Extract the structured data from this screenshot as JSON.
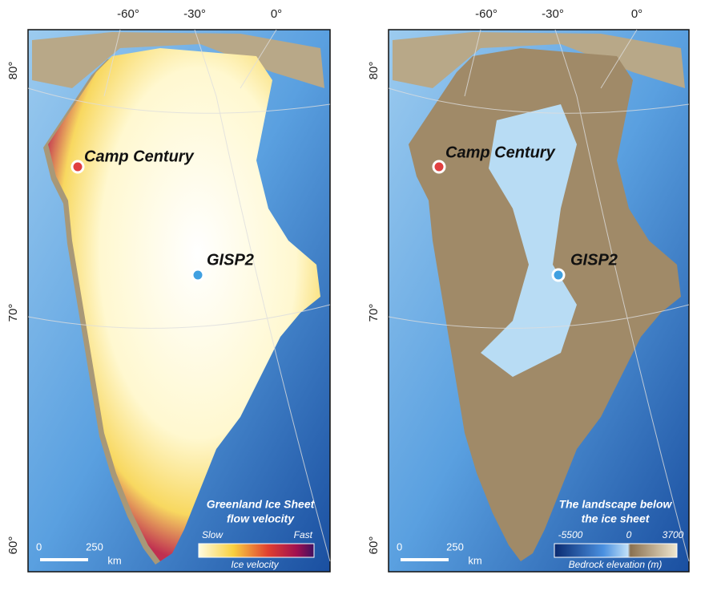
{
  "panels": [
    {
      "lon_labels": [
        "-60°",
        "-30°",
        "0°"
      ],
      "lat_labels": [
        "80°",
        "70°",
        "60°"
      ],
      "sites": [
        "Camp Century",
        "GISP2"
      ],
      "legend": {
        "title": [
          "Greenland Ice Sheet",
          "flow velocity"
        ],
        "scale_labels": [
          "Slow",
          "Fast"
        ],
        "caption": "Ice velocity"
      },
      "scale_bar": {
        "labels": [
          "0",
          "250"
        ],
        "unit": "km"
      }
    },
    {
      "lon_labels": [
        "-60°",
        "-30°",
        "0°"
      ],
      "lat_labels": [
        "80°",
        "70°",
        "60°"
      ],
      "sites": [
        "Camp Century",
        "GISP2"
      ],
      "legend": {
        "title": [
          "The landscape below",
          "the ice sheet"
        ],
        "scale_labels": [
          "-5500",
          "0",
          "3700"
        ],
        "caption": "Bedrock elevation (m)"
      },
      "scale_bar": {
        "labels": [
          "0",
          "250"
        ],
        "unit": "km"
      }
    }
  ]
}
